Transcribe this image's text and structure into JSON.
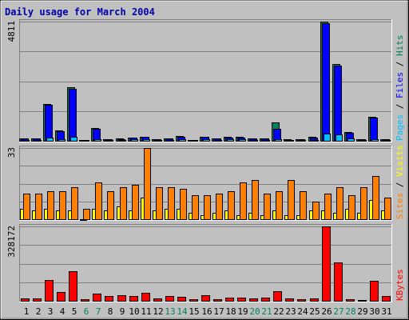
{
  "colors": {
    "background": "#c0c0c0",
    "title": "#0000aa",
    "hits": "#00805c",
    "files": "#0000ff",
    "pages": "#00c0ff",
    "visits": "#ffff00",
    "sites": "#ff8000",
    "kbytes": "#ff0000",
    "weekend": "#00805c",
    "weekday": "#000000",
    "grid": "#808080"
  },
  "chart_data": {
    "type": "bar",
    "title": "Daily usage for March 2004",
    "categories": [
      "1",
      "2",
      "3",
      "4",
      "5",
      "6",
      "7",
      "8",
      "9",
      "10",
      "11",
      "12",
      "13",
      "14",
      "15",
      "16",
      "17",
      "18",
      "19",
      "20",
      "21",
      "22",
      "23",
      "24",
      "25",
      "26",
      "27",
      "28",
      "29",
      "30",
      "31"
    ],
    "weekend_days": [
      "6",
      "7",
      "13",
      "14",
      "20",
      "21",
      "27",
      "28"
    ],
    "panels": [
      {
        "max_label": "4811",
        "ylim": [
          0,
          4811
        ],
        "legend": [
          {
            "text": "Pages",
            "color": "#00c0ff"
          },
          {
            "text": " / ",
            "color": "#000000"
          },
          {
            "text": "Files",
            "color": "#0000ff"
          },
          {
            "text": " / ",
            "color": "#000000"
          },
          {
            "text": "Hits",
            "color": "#00805c"
          }
        ],
        "series": [
          {
            "key": "hits",
            "values": [
              110,
              110,
              1500,
              420,
              2150,
              45,
              510,
              60,
              90,
              140,
              160,
              80,
              100,
              180,
              45,
              160,
              110,
              150,
              150,
              100,
              110,
              750,
              50,
              70,
              150,
              4811,
              3100,
              340,
              75,
              960,
              70
            ]
          },
          {
            "key": "files",
            "values": [
              100,
              100,
              1450,
              400,
              2100,
              40,
              500,
              55,
              80,
              130,
              150,
              70,
              90,
              170,
              40,
              150,
              100,
              140,
              140,
              90,
              100,
              500,
              45,
              60,
              140,
              4750,
              3050,
              330,
              70,
              950,
              60
            ]
          },
          {
            "key": "pages",
            "values": [
              40,
              40,
              120,
              80,
              160,
              20,
              60,
              25,
              35,
              50,
              60,
              30,
              40,
              60,
              20,
              50,
              40,
              50,
              50,
              35,
              40,
              60,
              20,
              25,
              40,
              300,
              250,
              90,
              30,
              80,
              25
            ]
          }
        ]
      },
      {
        "max_label": "33",
        "ylim": [
          0,
          33
        ],
        "legend": [
          {
            "text": "Sites",
            "color": "#ff8000"
          },
          {
            "text": " / ",
            "color": "#000000"
          },
          {
            "text": "Visits",
            "color": "#ffff00"
          }
        ],
        "series": [
          {
            "key": "visits",
            "values": [
              5,
              4,
              5,
              4,
              4,
              0,
              5,
              4,
              6,
              4,
              10,
              4,
              5,
              5,
              3,
              2,
              3,
              4,
              2,
              3,
              2,
              4,
              2,
              2,
              4,
              4,
              3,
              5,
              3,
              9,
              4
            ]
          },
          {
            "key": "sites",
            "values": [
              12,
              12,
              13,
              13,
              15,
              5,
              17,
              13,
              15,
              16,
              33,
              15,
              15,
              14,
              11,
              11,
              12,
              13,
              17,
              18,
              12,
              13,
              18,
              13,
              8,
              12,
              15,
              11,
              15,
              20,
              10
            ]
          }
        ]
      },
      {
        "max_label": "328172",
        "ylim": [
          0,
          328172
        ],
        "legend": [
          {
            "text": "KBytes",
            "color": "#ff0000"
          }
        ],
        "series": [
          {
            "key": "kbytes",
            "values": [
              12000,
              12000,
              93000,
              40000,
              130000,
              8000,
              32000,
              20000,
              25000,
              20000,
              35000,
              12000,
              22000,
              17000,
              8000,
              25000,
              8000,
              15000,
              15000,
              12000,
              13000,
              43000,
              10000,
              6000,
              11000,
              328172,
              170000,
              8000,
              5000,
              87000,
              22000
            ]
          }
        ]
      }
    ]
  }
}
